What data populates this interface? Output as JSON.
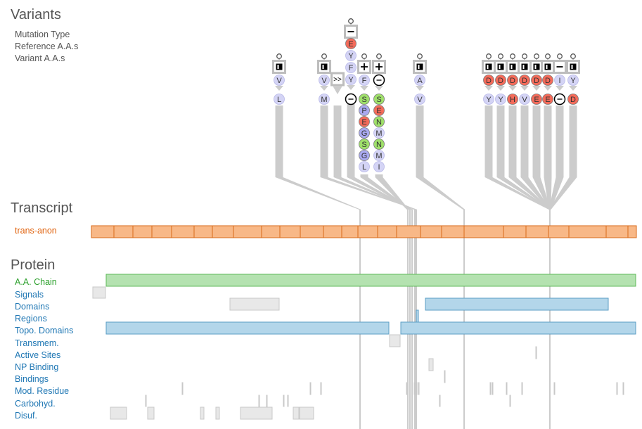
{
  "variants_panel": {
    "title": "Variants",
    "labels": [
      "Mutation Type",
      "Reference A.A.s",
      "Variant A.A.s"
    ],
    "columns": [
      {
        "type": "missense",
        "ref": [
          "V"
        ],
        "var": [
          "L"
        ]
      },
      {
        "type": "missense",
        "ref": [
          "V"
        ],
        "var": [
          "M"
        ]
      },
      {
        "type": "frameshift",
        "ref": [],
        "var": []
      },
      {
        "type": "deletion",
        "ref": [
          "E",
          "Y",
          "F",
          "Y"
        ],
        "var": [
          "-"
        ]
      },
      {
        "type": "insertion",
        "ref": [
          "F"
        ],
        "var": [
          "S",
          "P",
          "E",
          "G",
          "S",
          "G",
          "L"
        ]
      },
      {
        "type": "insertion",
        "ref": [
          "-"
        ],
        "var": [
          "S",
          "E",
          "N",
          "M",
          "N",
          "M",
          "I"
        ]
      },
      {
        "type": "missense",
        "ref": [
          "A"
        ],
        "var": [
          "V"
        ]
      },
      {
        "type": "missense",
        "ref": [
          "D"
        ],
        "var": [
          "Y"
        ]
      },
      {
        "type": "missense",
        "ref": [
          "D"
        ],
        "var": [
          "Y"
        ]
      },
      {
        "type": "missense",
        "ref": [
          "D"
        ],
        "var": [
          "H"
        ]
      },
      {
        "type": "missense",
        "ref": [
          "D"
        ],
        "var": [
          "V"
        ]
      },
      {
        "type": "missense",
        "ref": [
          "D"
        ],
        "var": [
          "E"
        ]
      },
      {
        "type": "missense",
        "ref": [
          "D"
        ],
        "var": [
          "E"
        ]
      },
      {
        "type": "deletion",
        "ref": [
          "I"
        ],
        "var": [
          "-"
        ]
      },
      {
        "type": "missense",
        "ref": [
          "Y"
        ],
        "var": [
          "D"
        ]
      }
    ]
  },
  "transcript_panel": {
    "title": "Transcript",
    "track_label": "trans-anon",
    "exon_count": 22
  },
  "protein_panel": {
    "title": "Protein",
    "tracks": [
      {
        "label": "A.A. Chain",
        "color": "#2ca02c"
      },
      {
        "label": "Signals",
        "color": "#1f77b4"
      },
      {
        "label": "Domains",
        "color": "#1f77b4"
      },
      {
        "label": "Regions",
        "color": "#1f77b4"
      },
      {
        "label": "Topo. Domains",
        "color": "#1f77b4"
      },
      {
        "label": "Transmem.",
        "color": "#1f77b4"
      },
      {
        "label": "Active Sites",
        "color": "#1f77b4"
      },
      {
        "label": "NP Binding",
        "color": "#1f77b4"
      },
      {
        "label": "Bindings",
        "color": "#1f77b4"
      },
      {
        "label": "Mod. Residue",
        "color": "#1f77b4"
      },
      {
        "label": "Carbohyd.",
        "color": "#1f77b4"
      },
      {
        "label": "Disuf.",
        "color": "#1f77b4"
      }
    ]
  },
  "colors": {
    "exon_fill": "#f8b887",
    "exon_stroke": "#d96a1a",
    "transcript_label": "#e0620d",
    "chain_fill": "#b4e2b0",
    "feature_blue": "#b3d6ea",
    "feature_gray": "#e8e8e8",
    "connector": "#cccccc",
    "aa_red": "#f46b5a",
    "aa_green": "#9fe06a",
    "aa_blue": "#a9a9f0",
    "aa_light": "#d4d4f5"
  }
}
